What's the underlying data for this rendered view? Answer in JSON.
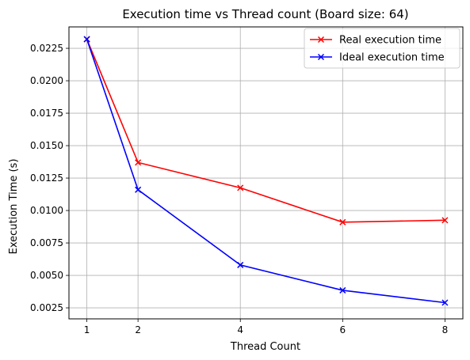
{
  "chart_data": {
    "type": "line",
    "title": "Execution time vs Thread count (Board size: 64)",
    "xlabel": "Thread Count",
    "ylabel": "Execution Time (s)",
    "x": [
      1,
      2,
      4,
      6,
      8
    ],
    "xticks": [
      1,
      2,
      4,
      6,
      8
    ],
    "xtick_labels": [
      "1",
      "2",
      "4",
      "6",
      "8"
    ],
    "yticks": [
      0.0025,
      0.005,
      0.0075,
      0.01,
      0.0125,
      0.015,
      0.0175,
      0.02,
      0.0225
    ],
    "ytick_labels": [
      "0.0025",
      "0.0050",
      "0.0075",
      "0.0100",
      "0.0125",
      "0.0150",
      "0.0175",
      "0.0200",
      "0.0225"
    ],
    "xlim": [
      0.65,
      8.35
    ],
    "ylim": [
      0.00165,
      0.02415
    ],
    "grid": true,
    "legend_position": "upper right",
    "series": [
      {
        "name": "Real execution time",
        "color": "#ff0000",
        "marker": "x",
        "values": [
          0.0232,
          0.0137,
          0.01175,
          0.0091,
          0.00925
        ]
      },
      {
        "name": "Ideal execution time",
        "color": "#0000ff",
        "marker": "x",
        "values": [
          0.0232,
          0.0116,
          0.0058,
          0.00385,
          0.0029
        ]
      }
    ]
  }
}
